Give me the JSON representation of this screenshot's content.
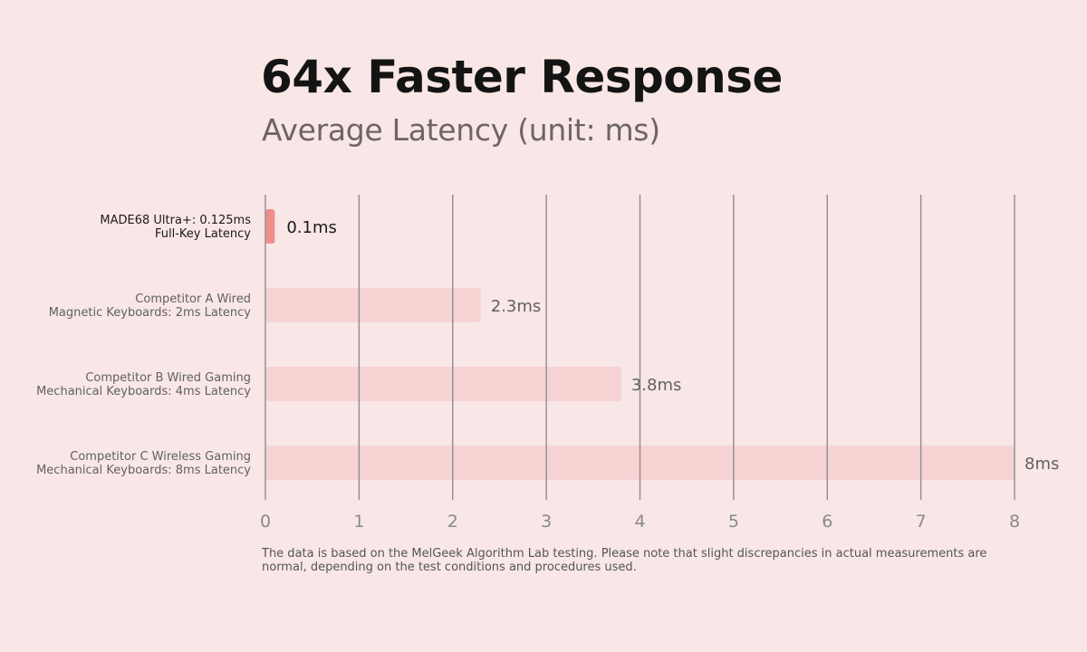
{
  "chart_data": {
    "type": "bar",
    "orientation": "horizontal",
    "title": "64x Faster Response",
    "subtitle": "Average Latency (unit: ms)",
    "categories": [
      [
        "MADE68 Ultra+: 0.125ms",
        "Full-Key Latency"
      ],
      [
        "Competitor A Wired",
        "Magnetic Keyboards: 2ms Latency"
      ],
      [
        "Competitor B Wired Gaming",
        "Mechanical Keyboards: 4ms Latency"
      ],
      [
        "Competitor C Wireless Gaming",
        "Mechanical Keyboards: 8ms Latency"
      ]
    ],
    "values": [
      0.1,
      2.3,
      3.8,
      8
    ],
    "data_labels": [
      "0.1ms",
      "2.3ms",
      "3.8ms",
      "8ms"
    ],
    "xlim": [
      0,
      8
    ],
    "xticks": [
      "0",
      "1",
      "2",
      "3",
      "4",
      "5",
      "6",
      "7",
      "8"
    ],
    "grid": true,
    "colors": {
      "highlight_bar": "#f08e8c",
      "other_bars": "#f6d2d3",
      "grid": "#8d8d8d",
      "highlight_text": "#1a1a1a",
      "muted_text": "#616161"
    }
  },
  "footnote": "The data is based on the MelGeek Algorithm Lab testing. Please note that slight discrepancies in actual measurements are normal, depending on the test conditions and procedures used."
}
